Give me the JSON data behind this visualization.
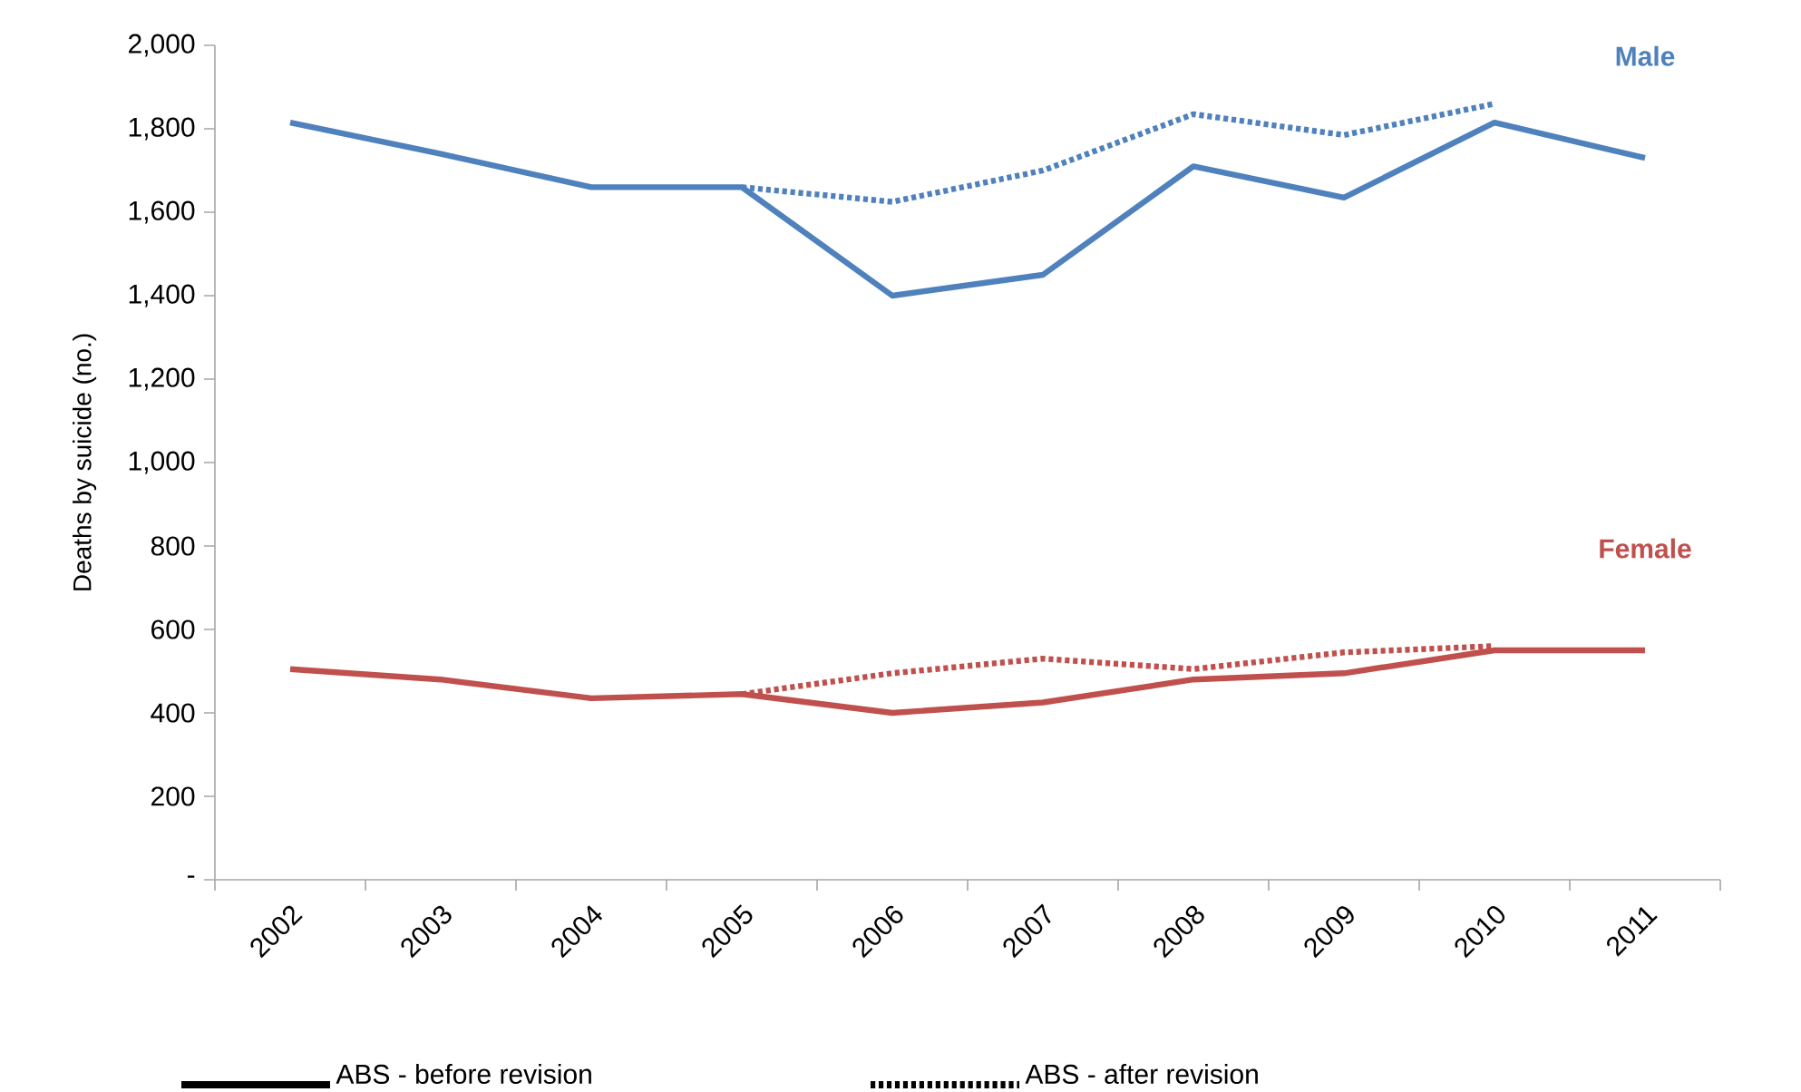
{
  "chart_data": {
    "type": "line",
    "ylabel": "Deaths by suicide (no.)",
    "categories": [
      "2002",
      "2003",
      "2004",
      "2005",
      "2006",
      "2007",
      "2008",
      "2009",
      "2010",
      "2011"
    ],
    "series": [
      {
        "name": "Male",
        "color": "#4f81bd",
        "line_style": "solid",
        "values": [
          1815,
          1740,
          1660,
          1660,
          1400,
          1450,
          1710,
          1635,
          1815,
          1730
        ]
      },
      {
        "color": "#4f81bd",
        "line_style": "dotted",
        "values": [
          null,
          null,
          null,
          1660,
          1625,
          1700,
          1835,
          1785,
          1860,
          null
        ]
      },
      {
        "name": "Female",
        "color": "#c0504d",
        "line_style": "solid",
        "values": [
          505,
          480,
          435,
          445,
          400,
          425,
          480,
          495,
          550,
          550
        ]
      },
      {
        "color": "#c0504d",
        "line_style": "dotted",
        "values": [
          null,
          null,
          null,
          445,
          495,
          530,
          505,
          545,
          560,
          null
        ]
      }
    ],
    "ylim": [
      0,
      2000
    ],
    "yticks": [
      {
        "value": 0,
        "label": "-"
      },
      {
        "value": 200,
        "label": "200"
      },
      {
        "value": 400,
        "label": "400"
      },
      {
        "value": 600,
        "label": "600"
      },
      {
        "value": 800,
        "label": "800"
      },
      {
        "value": 1000,
        "label": "1,000"
      },
      {
        "value": 1200,
        "label": "1,200"
      },
      {
        "value": 1400,
        "label": "1,400"
      },
      {
        "value": 1600,
        "label": "1,600"
      },
      {
        "value": 1800,
        "label": "1,800"
      },
      {
        "value": 2000,
        "label": "2,000"
      }
    ],
    "grid": false,
    "marker": "none",
    "annotations": [
      "ABS - before revision",
      "ABS - after revision"
    ]
  }
}
